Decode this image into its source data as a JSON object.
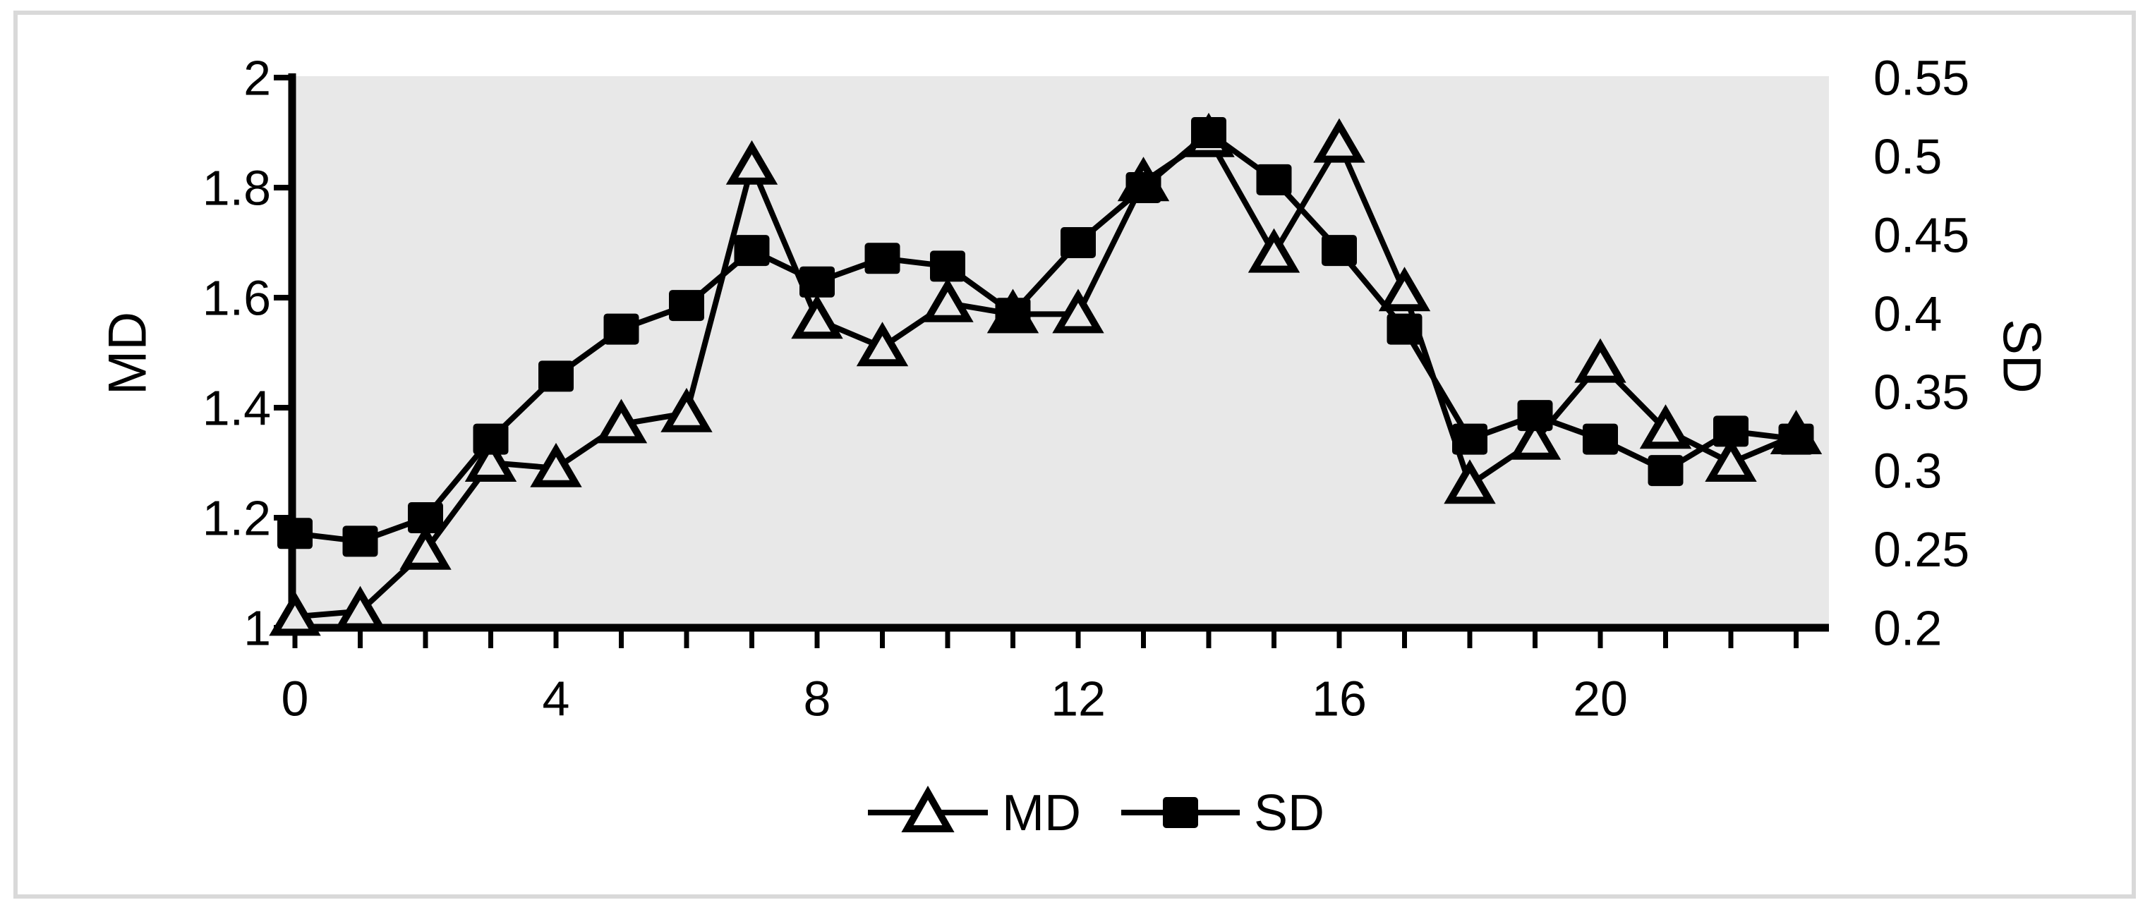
{
  "figure": {
    "background": "#FFFFFF",
    "border_color": "#D9D9D9",
    "plot_background": "#E8E8E8",
    "axis_color": "#000000"
  },
  "chart_data": {
    "type": "line",
    "title": "",
    "grid": false,
    "x": [
      0,
      1,
      2,
      3,
      4,
      5,
      6,
      7,
      8,
      9,
      10,
      11,
      12,
      13,
      14,
      15,
      16,
      17,
      18,
      19,
      20,
      21,
      22,
      23
    ],
    "x_axis": {
      "min": 0,
      "max": 23.5,
      "tick_interval": 1,
      "labeled_tick_values": [
        0,
        4,
        8,
        12,
        16,
        20
      ],
      "labeled_ticks": [
        "0",
        "4",
        "8",
        "12",
        "16",
        "20"
      ]
    },
    "left_axis": {
      "label": "MD",
      "min": 1,
      "max": 2,
      "tick_values": [
        2,
        1.8,
        1.6,
        1.4,
        1.2,
        1
      ],
      "ticks": [
        "2",
        "1.8",
        "1.6",
        "1.4",
        "1.2",
        "1"
      ]
    },
    "right_axis": {
      "label": "SD",
      "min": 0.2,
      "max": 0.55,
      "tick_values": [
        0.55,
        0.5,
        0.45,
        0.4,
        0.35,
        0.3,
        0.25,
        0.2
      ],
      "ticks": [
        "0.55",
        "0.5",
        "0.45",
        "0.4",
        "0.35",
        "0.3",
        "0.25",
        "0.2"
      ]
    },
    "series": [
      {
        "name": "MD",
        "axis": "left",
        "marker": "open-triangle",
        "color": "#000000",
        "values": [
          1.02,
          1.03,
          1.14,
          1.3,
          1.29,
          1.37,
          1.39,
          1.84,
          1.56,
          1.51,
          1.59,
          1.57,
          1.57,
          1.81,
          1.89,
          1.68,
          1.88,
          1.61,
          1.26,
          1.34,
          1.48,
          1.36,
          1.3,
          1.35
        ]
      },
      {
        "name": "SD",
        "axis": "right",
        "marker": "filled-square",
        "color": "#000000",
        "values": [
          0.26,
          0.255,
          0.27,
          0.32,
          0.36,
          0.39,
          0.405,
          0.44,
          0.42,
          0.435,
          0.43,
          0.4,
          0.445,
          0.48,
          0.515,
          0.485,
          0.44,
          0.39,
          0.32,
          0.335,
          0.32,
          0.3,
          0.325,
          0.32
        ]
      }
    ],
    "legend": {
      "position": "bottom-center",
      "items": [
        "MD",
        "SD"
      ]
    }
  }
}
